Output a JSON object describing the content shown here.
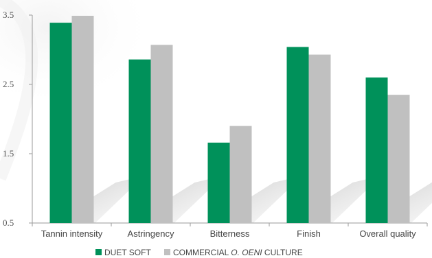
{
  "chart_data": {
    "type": "bar",
    "categories": [
      "Tannin intensity",
      "Astringency",
      "Bitterness",
      "Finish",
      "Overall quality"
    ],
    "series": [
      {
        "name": "DUET SOFT",
        "color": "#00915a",
        "values": [
          3.39,
          2.86,
          1.66,
          3.04,
          2.6
        ]
      },
      {
        "name": "COMMERCIAL O. OENI CULTURE",
        "name_parts": {
          "before": "COMMERCIAL ",
          "italic": "O. OENI",
          "after": " CULTURE"
        },
        "color": "#c0c0c0",
        "values": [
          3.49,
          3.07,
          1.9,
          2.93,
          2.35
        ]
      }
    ],
    "yticks": [
      "3.5",
      "2.5",
      "1.5",
      "0.5"
    ],
    "ylim": [
      0.5,
      3.5
    ],
    "xlabel": "",
    "ylabel": "",
    "title": "",
    "grid": false,
    "legend_position": "bottom-center"
  }
}
